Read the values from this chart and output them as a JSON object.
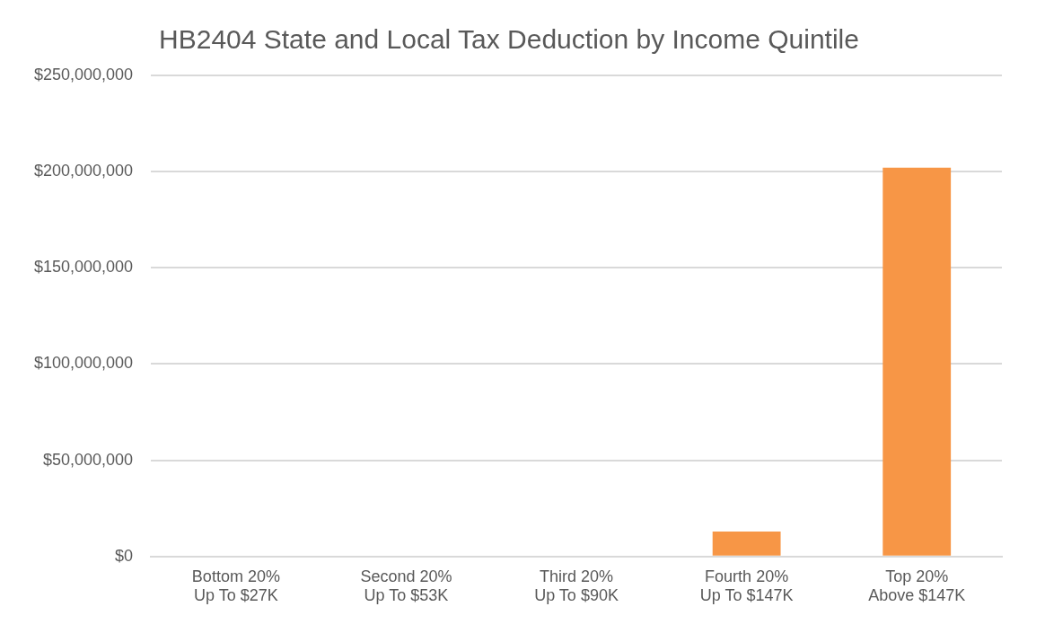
{
  "chart_data": {
    "type": "bar",
    "title": "HB2404 State and Local Tax Deduction by Income Quintile",
    "categories": [
      "Bottom 20%\nUp To $27K",
      "Second 20%\nUp To $53K",
      "Third 20%\nUp To $90K",
      "Fourth 20%\nUp To $147K",
      "Top 20%\nAbove $147K"
    ],
    "values": [
      0,
      0,
      0,
      13000000,
      202000000
    ],
    "color": "#f79646",
    "ylim": [
      0,
      250000000
    ],
    "yticks": [
      {
        "value": 0,
        "label": "$0"
      },
      {
        "value": 50000000,
        "label": "$50,000,000"
      },
      {
        "value": 100000000,
        "label": "$100,000,000"
      },
      {
        "value": 150000000,
        "label": "$150,000,000"
      },
      {
        "value": 200000000,
        "label": "$200,000,000"
      },
      {
        "value": 250000000,
        "label": "$250,000,000"
      }
    ],
    "grid": "y",
    "legend": false
  }
}
